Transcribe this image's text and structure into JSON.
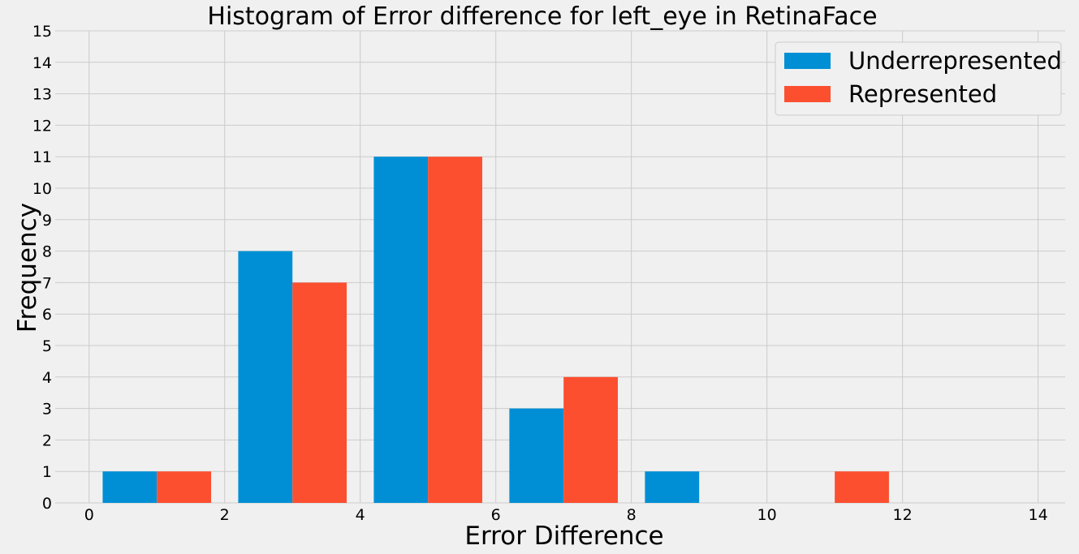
{
  "chart_data": {
    "type": "bar",
    "title": "Histogram of Error difference for left_eye in RetinaFace",
    "xlabel": "Error Difference",
    "ylabel": "Frequency",
    "xlim": [
      -0.5,
      14.4
    ],
    "ylim": [
      0,
      15
    ],
    "xticks": [
      0,
      2,
      4,
      6,
      8,
      10,
      12,
      14
    ],
    "yticks": [
      0,
      1,
      2,
      3,
      4,
      5,
      6,
      7,
      8,
      9,
      10,
      11,
      12,
      13,
      14,
      15
    ],
    "grid": true,
    "legend_position": "top-right",
    "series": [
      {
        "name": "Underrepresented",
        "color": "#008fd5",
        "bins": [
          {
            "x0": 0.2,
            "x1": 1.0,
            "value": 1
          },
          {
            "x0": 2.2,
            "x1": 3.0,
            "value": 8
          },
          {
            "x0": 4.2,
            "x1": 5.0,
            "value": 11
          },
          {
            "x0": 6.2,
            "x1": 7.0,
            "value": 3
          },
          {
            "x0": 8.2,
            "x1": 9.0,
            "value": 1
          }
        ]
      },
      {
        "name": "Represented",
        "color": "#fc4f30",
        "bins": [
          {
            "x0": 1.0,
            "x1": 1.8,
            "value": 1
          },
          {
            "x0": 3.0,
            "x1": 3.8,
            "value": 7
          },
          {
            "x0": 5.0,
            "x1": 5.8,
            "value": 11
          },
          {
            "x0": 7.0,
            "x1": 7.8,
            "value": 4
          },
          {
            "x0": 11.0,
            "x1": 11.8,
            "value": 1
          }
        ]
      }
    ]
  }
}
